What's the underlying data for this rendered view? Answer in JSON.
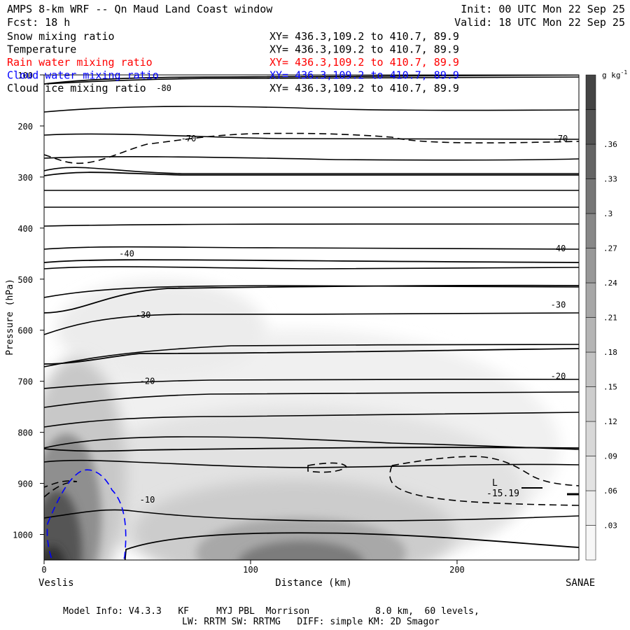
{
  "header": {
    "title": "AMPS 8-km WRF -- Qn Maud Land Coast window",
    "init": "Init: 00 UTC Mon 22 Sep 25",
    "fcst": "Fcst:   18 h",
    "valid": "Valid: 18 UTC Mon 22 Sep 25"
  },
  "legend": [
    {
      "label": "Snow mixing ratio",
      "xy": "XY= 436.3,109.2 to 410.7, 89.9",
      "color": "#000000"
    },
    {
      "label": "Temperature",
      "xy": "XY= 436.3,109.2 to 410.7, 89.9",
      "color": "#000000"
    },
    {
      "label": "Rain water mixing ratio",
      "xy": "XY= 436.3,109.2 to 410.7, 89.9",
      "color": "#ff0000"
    },
    {
      "label": "Cloud water mixing ratio",
      "xy": "XY= 436.3,109.2 to 410.7, 89.9",
      "color": "#0000ff"
    },
    {
      "label": "Cloud ice mixing ratio",
      "xy": "XY= 436.3,109.2 to 410.7, 89.9",
      "color": "#000000"
    }
  ],
  "footer": {
    "line1": "Model Info: V4.3.3   KF     MYJ PBL  Morrison            8.0 km,  60 levels,",
    "line2": "LW: RRTM SW: RRTMG   DIFF: simple KM: 2D Smagor"
  },
  "chart_data": {
    "type": "cross-section",
    "title": "AMPS 8-km WRF -- Qn Maud Land Coast window",
    "xlabel": "Distance (km)",
    "ylabel": "Pressure (hPa)",
    "xlim": [
      0,
      259
    ],
    "ylim": [
      1050,
      100
    ],
    "x_ticks": [
      0,
      100,
      200
    ],
    "y_ticks": [
      100,
      200,
      300,
      400,
      500,
      600,
      700,
      800,
      900,
      1000
    ],
    "x_end_labels": {
      "left": "Veslis",
      "right": "SANAE"
    },
    "colorbar": {
      "unit": "g kg",
      "unit_exp": "-1",
      "ticks": [
        ".03",
        ".06",
        ".09",
        ".12",
        ".15",
        ".18",
        ".21",
        ".24",
        ".27",
        ".3",
        ".33",
        ".36"
      ],
      "colors": [
        "#f7f7f7",
        "#ededed",
        "#e3e3e3",
        "#d8d8d8",
        "#cdcdcd",
        "#c2c2c2",
        "#b5b5b5",
        "#a7a7a7",
        "#989898",
        "#888888",
        "#777777",
        "#656565",
        "#535353",
        "#444444"
      ]
    },
    "temperature_labels": [
      {
        "text": "-80",
        "x": 58,
        "p": 126
      },
      {
        "text": "-70",
        "x": 70,
        "p": 225
      },
      {
        "text": "-70",
        "x": 250,
        "p": 225
      },
      {
        "text": "-40",
        "x": 40,
        "p": 450
      },
      {
        "text": "-40",
        "x": 249,
        "p": 440
      },
      {
        "text": "-30",
        "x": 48,
        "p": 570
      },
      {
        "text": "-30",
        "x": 249,
        "p": 550
      },
      {
        "text": "-20",
        "x": 50,
        "p": 700
      },
      {
        "text": "-20",
        "x": 249,
        "p": 690
      },
      {
        "text": "-10",
        "x": 50,
        "p": 932
      }
    ],
    "low_marker": {
      "symbol": "L",
      "value": "-15.19",
      "x": 218,
      "p": 905
    }
  }
}
